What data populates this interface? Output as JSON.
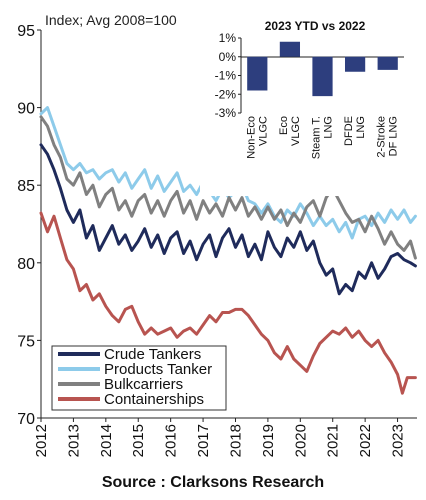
{
  "chart_data": [
    {
      "type": "line",
      "title": "",
      "y_axis_note": "Index; Avg 2008=100",
      "ylim": [
        70,
        95
      ],
      "yticks": [
        70,
        75,
        80,
        85,
        90,
        95
      ],
      "xlim": [
        2012,
        2023.6
      ],
      "xticks": [
        2012,
        2013,
        2014,
        2015,
        2016,
        2017,
        2018,
        2019,
        2020,
        2021,
        2022,
        2023
      ],
      "grid": false,
      "legend_position": "bottom-left",
      "series": [
        {
          "name": "Crude Tankers",
          "color": "#1f2b5b",
          "points": [
            [
              2012.0,
              87.6
            ],
            [
              2012.2,
              87.0
            ],
            [
              2012.4,
              86.0
            ],
            [
              2012.6,
              84.8
            ],
            [
              2012.8,
              83.4
            ],
            [
              2013.0,
              82.6
            ],
            [
              2013.2,
              83.4
            ],
            [
              2013.4,
              81.6
            ],
            [
              2013.6,
              82.4
            ],
            [
              2013.8,
              80.8
            ],
            [
              2014.0,
              81.6
            ],
            [
              2014.2,
              82.4
            ],
            [
              2014.4,
              81.2
            ],
            [
              2014.6,
              81.8
            ],
            [
              2014.8,
              80.8
            ],
            [
              2015.0,
              81.4
            ],
            [
              2015.2,
              82.2
            ],
            [
              2015.4,
              81.0
            ],
            [
              2015.6,
              81.8
            ],
            [
              2015.8,
              80.6
            ],
            [
              2016.0,
              81.6
            ],
            [
              2016.2,
              82.0
            ],
            [
              2016.4,
              80.6
            ],
            [
              2016.6,
              81.4
            ],
            [
              2016.8,
              80.2
            ],
            [
              2017.0,
              81.2
            ],
            [
              2017.2,
              81.8
            ],
            [
              2017.4,
              80.4
            ],
            [
              2017.6,
              81.6
            ],
            [
              2017.8,
              82.2
            ],
            [
              2018.0,
              81.0
            ],
            [
              2018.2,
              81.8
            ],
            [
              2018.4,
              80.4
            ],
            [
              2018.6,
              81.2
            ],
            [
              2018.8,
              80.2
            ],
            [
              2019.0,
              82.0
            ],
            [
              2019.2,
              81.0
            ],
            [
              2019.4,
              80.4
            ],
            [
              2019.6,
              81.6
            ],
            [
              2019.8,
              81.0
            ],
            [
              2020.0,
              82.0
            ],
            [
              2020.2,
              80.8
            ],
            [
              2020.4,
              81.4
            ],
            [
              2020.6,
              80.0
            ],
            [
              2020.8,
              79.2
            ],
            [
              2021.0,
              79.6
            ],
            [
              2021.2,
              78.0
            ],
            [
              2021.4,
              78.6
            ],
            [
              2021.6,
              78.2
            ],
            [
              2021.8,
              79.4
            ],
            [
              2022.0,
              79.0
            ],
            [
              2022.2,
              80.0
            ],
            [
              2022.4,
              79.0
            ],
            [
              2022.6,
              79.6
            ],
            [
              2022.8,
              80.4
            ],
            [
              2023.0,
              80.6
            ],
            [
              2023.2,
              80.2
            ],
            [
              2023.4,
              80.0
            ],
            [
              2023.55,
              79.8
            ]
          ]
        },
        {
          "name": "Products Tanker",
          "color": "#8dcbea",
          "points": [
            [
              2012.0,
              89.6
            ],
            [
              2012.2,
              90.0
            ],
            [
              2012.4,
              88.8
            ],
            [
              2012.6,
              87.6
            ],
            [
              2012.8,
              86.4
            ],
            [
              2013.0,
              86.0
            ],
            [
              2013.2,
              86.4
            ],
            [
              2013.4,
              85.8
            ],
            [
              2013.6,
              86.0
            ],
            [
              2013.8,
              85.4
            ],
            [
              2014.0,
              85.8
            ],
            [
              2014.2,
              86.0
            ],
            [
              2014.4,
              85.2
            ],
            [
              2014.6,
              85.8
            ],
            [
              2014.8,
              84.8
            ],
            [
              2015.0,
              85.4
            ],
            [
              2015.2,
              86.0
            ],
            [
              2015.4,
              84.8
            ],
            [
              2015.6,
              85.6
            ],
            [
              2015.8,
              84.6
            ],
            [
              2016.0,
              85.2
            ],
            [
              2016.2,
              85.8
            ],
            [
              2016.4,
              84.6
            ],
            [
              2016.6,
              85.0
            ],
            [
              2016.8,
              84.4
            ],
            [
              2017.0,
              85.2
            ],
            [
              2017.2,
              84.6
            ],
            [
              2017.4,
              84.0
            ],
            [
              2017.6,
              84.8
            ],
            [
              2017.8,
              84.2
            ],
            [
              2018.0,
              84.6
            ],
            [
              2018.2,
              85.0
            ],
            [
              2018.4,
              84.0
            ],
            [
              2018.6,
              83.8
            ],
            [
              2018.8,
              83.2
            ],
            [
              2019.0,
              83.8
            ],
            [
              2019.2,
              83.0
            ],
            [
              2019.4,
              82.6
            ],
            [
              2019.6,
              83.4
            ],
            [
              2019.8,
              83.0
            ],
            [
              2020.0,
              83.8
            ],
            [
              2020.2,
              83.2
            ],
            [
              2020.4,
              82.4
            ],
            [
              2020.6,
              83.0
            ],
            [
              2020.8,
              82.4
            ],
            [
              2021.0,
              82.8
            ],
            [
              2021.2,
              82.0
            ],
            [
              2021.4,
              82.6
            ],
            [
              2021.6,
              81.6
            ],
            [
              2021.8,
              82.8
            ],
            [
              2022.0,
              83.0
            ],
            [
              2022.2,
              82.4
            ],
            [
              2022.4,
              83.2
            ],
            [
              2022.6,
              82.6
            ],
            [
              2022.8,
              83.4
            ],
            [
              2023.0,
              82.8
            ],
            [
              2023.2,
              83.4
            ],
            [
              2023.4,
              82.6
            ],
            [
              2023.55,
              83.0
            ]
          ]
        },
        {
          "name": "Bulkcarriers",
          "color": "#808080",
          "points": [
            [
              2012.0,
              89.4
            ],
            [
              2012.2,
              88.8
            ],
            [
              2012.4,
              87.6
            ],
            [
              2012.6,
              86.8
            ],
            [
              2012.8,
              85.4
            ],
            [
              2013.0,
              85.0
            ],
            [
              2013.2,
              85.8
            ],
            [
              2013.4,
              84.4
            ],
            [
              2013.6,
              85.0
            ],
            [
              2013.8,
              83.6
            ],
            [
              2014.0,
              84.4
            ],
            [
              2014.2,
              84.8
            ],
            [
              2014.4,
              83.4
            ],
            [
              2014.6,
              84.0
            ],
            [
              2014.8,
              83.0
            ],
            [
              2015.0,
              84.0
            ],
            [
              2015.2,
              84.4
            ],
            [
              2015.4,
              83.2
            ],
            [
              2015.6,
              84.0
            ],
            [
              2015.8,
              83.0
            ],
            [
              2016.0,
              84.0
            ],
            [
              2016.2,
              84.6
            ],
            [
              2016.4,
              83.2
            ],
            [
              2016.6,
              84.0
            ],
            [
              2016.8,
              82.8
            ],
            [
              2017.0,
              84.0
            ],
            [
              2017.2,
              83.2
            ],
            [
              2017.4,
              83.8
            ],
            [
              2017.6,
              83.0
            ],
            [
              2017.8,
              84.2
            ],
            [
              2018.0,
              83.4
            ],
            [
              2018.2,
              84.2
            ],
            [
              2018.4,
              83.0
            ],
            [
              2018.6,
              83.6
            ],
            [
              2018.8,
              82.8
            ],
            [
              2019.0,
              83.6
            ],
            [
              2019.2,
              82.8
            ],
            [
              2019.4,
              83.4
            ],
            [
              2019.6,
              82.4
            ],
            [
              2019.8,
              83.2
            ],
            [
              2020.0,
              82.6
            ],
            [
              2020.2,
              83.6
            ],
            [
              2020.4,
              84.0
            ],
            [
              2020.6,
              83.0
            ],
            [
              2020.8,
              84.2
            ],
            [
              2021.0,
              84.8
            ],
            [
              2021.2,
              84.0
            ],
            [
              2021.4,
              83.2
            ],
            [
              2021.6,
              82.6
            ],
            [
              2021.8,
              82.8
            ],
            [
              2022.0,
              82.0
            ],
            [
              2022.2,
              83.0
            ],
            [
              2022.4,
              82.2
            ],
            [
              2022.6,
              81.2
            ],
            [
              2022.8,
              82.0
            ],
            [
              2023.0,
              81.2
            ],
            [
              2023.2,
              80.8
            ],
            [
              2023.4,
              81.4
            ],
            [
              2023.55,
              80.3
            ]
          ]
        },
        {
          "name": "Containerships",
          "color": "#b85450",
          "points": [
            [
              2012.0,
              83.2
            ],
            [
              2012.2,
              82.0
            ],
            [
              2012.4,
              83.0
            ],
            [
              2012.6,
              81.6
            ],
            [
              2012.8,
              80.2
            ],
            [
              2013.0,
              79.6
            ],
            [
              2013.2,
              78.2
            ],
            [
              2013.4,
              78.6
            ],
            [
              2013.6,
              77.6
            ],
            [
              2013.8,
              78.0
            ],
            [
              2014.0,
              77.2
            ],
            [
              2014.2,
              76.6
            ],
            [
              2014.4,
              76.2
            ],
            [
              2014.6,
              77.0
            ],
            [
              2014.8,
              77.2
            ],
            [
              2015.0,
              76.2
            ],
            [
              2015.2,
              75.4
            ],
            [
              2015.4,
              75.8
            ],
            [
              2015.6,
              75.4
            ],
            [
              2015.8,
              75.6
            ],
            [
              2016.0,
              75.8
            ],
            [
              2016.2,
              75.2
            ],
            [
              2016.4,
              75.6
            ],
            [
              2016.6,
              75.8
            ],
            [
              2016.8,
              75.4
            ],
            [
              2017.0,
              76.0
            ],
            [
              2017.2,
              76.6
            ],
            [
              2017.4,
              76.2
            ],
            [
              2017.6,
              76.8
            ],
            [
              2017.8,
              76.8
            ],
            [
              2018.0,
              77.0
            ],
            [
              2018.2,
              77.0
            ],
            [
              2018.4,
              76.6
            ],
            [
              2018.6,
              76.0
            ],
            [
              2018.8,
              75.4
            ],
            [
              2019.0,
              75.0
            ],
            [
              2019.2,
              74.2
            ],
            [
              2019.4,
              73.8
            ],
            [
              2019.6,
              74.6
            ],
            [
              2019.8,
              73.8
            ],
            [
              2020.0,
              73.4
            ],
            [
              2020.2,
              73.0
            ],
            [
              2020.4,
              74.0
            ],
            [
              2020.6,
              74.8
            ],
            [
              2020.8,
              75.2
            ],
            [
              2021.0,
              75.6
            ],
            [
              2021.2,
              75.4
            ],
            [
              2021.4,
              75.8
            ],
            [
              2021.6,
              75.2
            ],
            [
              2021.8,
              75.6
            ],
            [
              2022.0,
              75.0
            ],
            [
              2022.2,
              74.6
            ],
            [
              2022.4,
              75.0
            ],
            [
              2022.6,
              74.2
            ],
            [
              2022.8,
              73.6
            ],
            [
              2023.0,
              72.8
            ],
            [
              2023.15,
              71.6
            ],
            [
              2023.3,
              72.6
            ],
            [
              2023.55,
              72.6
            ]
          ]
        }
      ]
    },
    {
      "type": "bar",
      "title": "2023 YTD vs 2022",
      "categories": [
        [
          "Non-Eco",
          "VLGC"
        ],
        [
          "Eco",
          "VLGC"
        ],
        [
          "Steam T.",
          "LNG"
        ],
        [
          "DFDE",
          "LNG"
        ],
        [
          "2-Stroke",
          "DF LNG"
        ]
      ],
      "values": [
        -1.8,
        0.8,
        -2.1,
        -0.8,
        -0.7
      ],
      "color": "#2d3e7e",
      "ylim": [
        -3,
        1
      ],
      "yticks": [
        1,
        0,
        -1,
        -2,
        -3
      ],
      "ytick_labels": [
        "1%",
        "0%",
        "-1%",
        "-2%",
        "-3%"
      ]
    }
  ],
  "source_text": "Source : Clarksons Research"
}
